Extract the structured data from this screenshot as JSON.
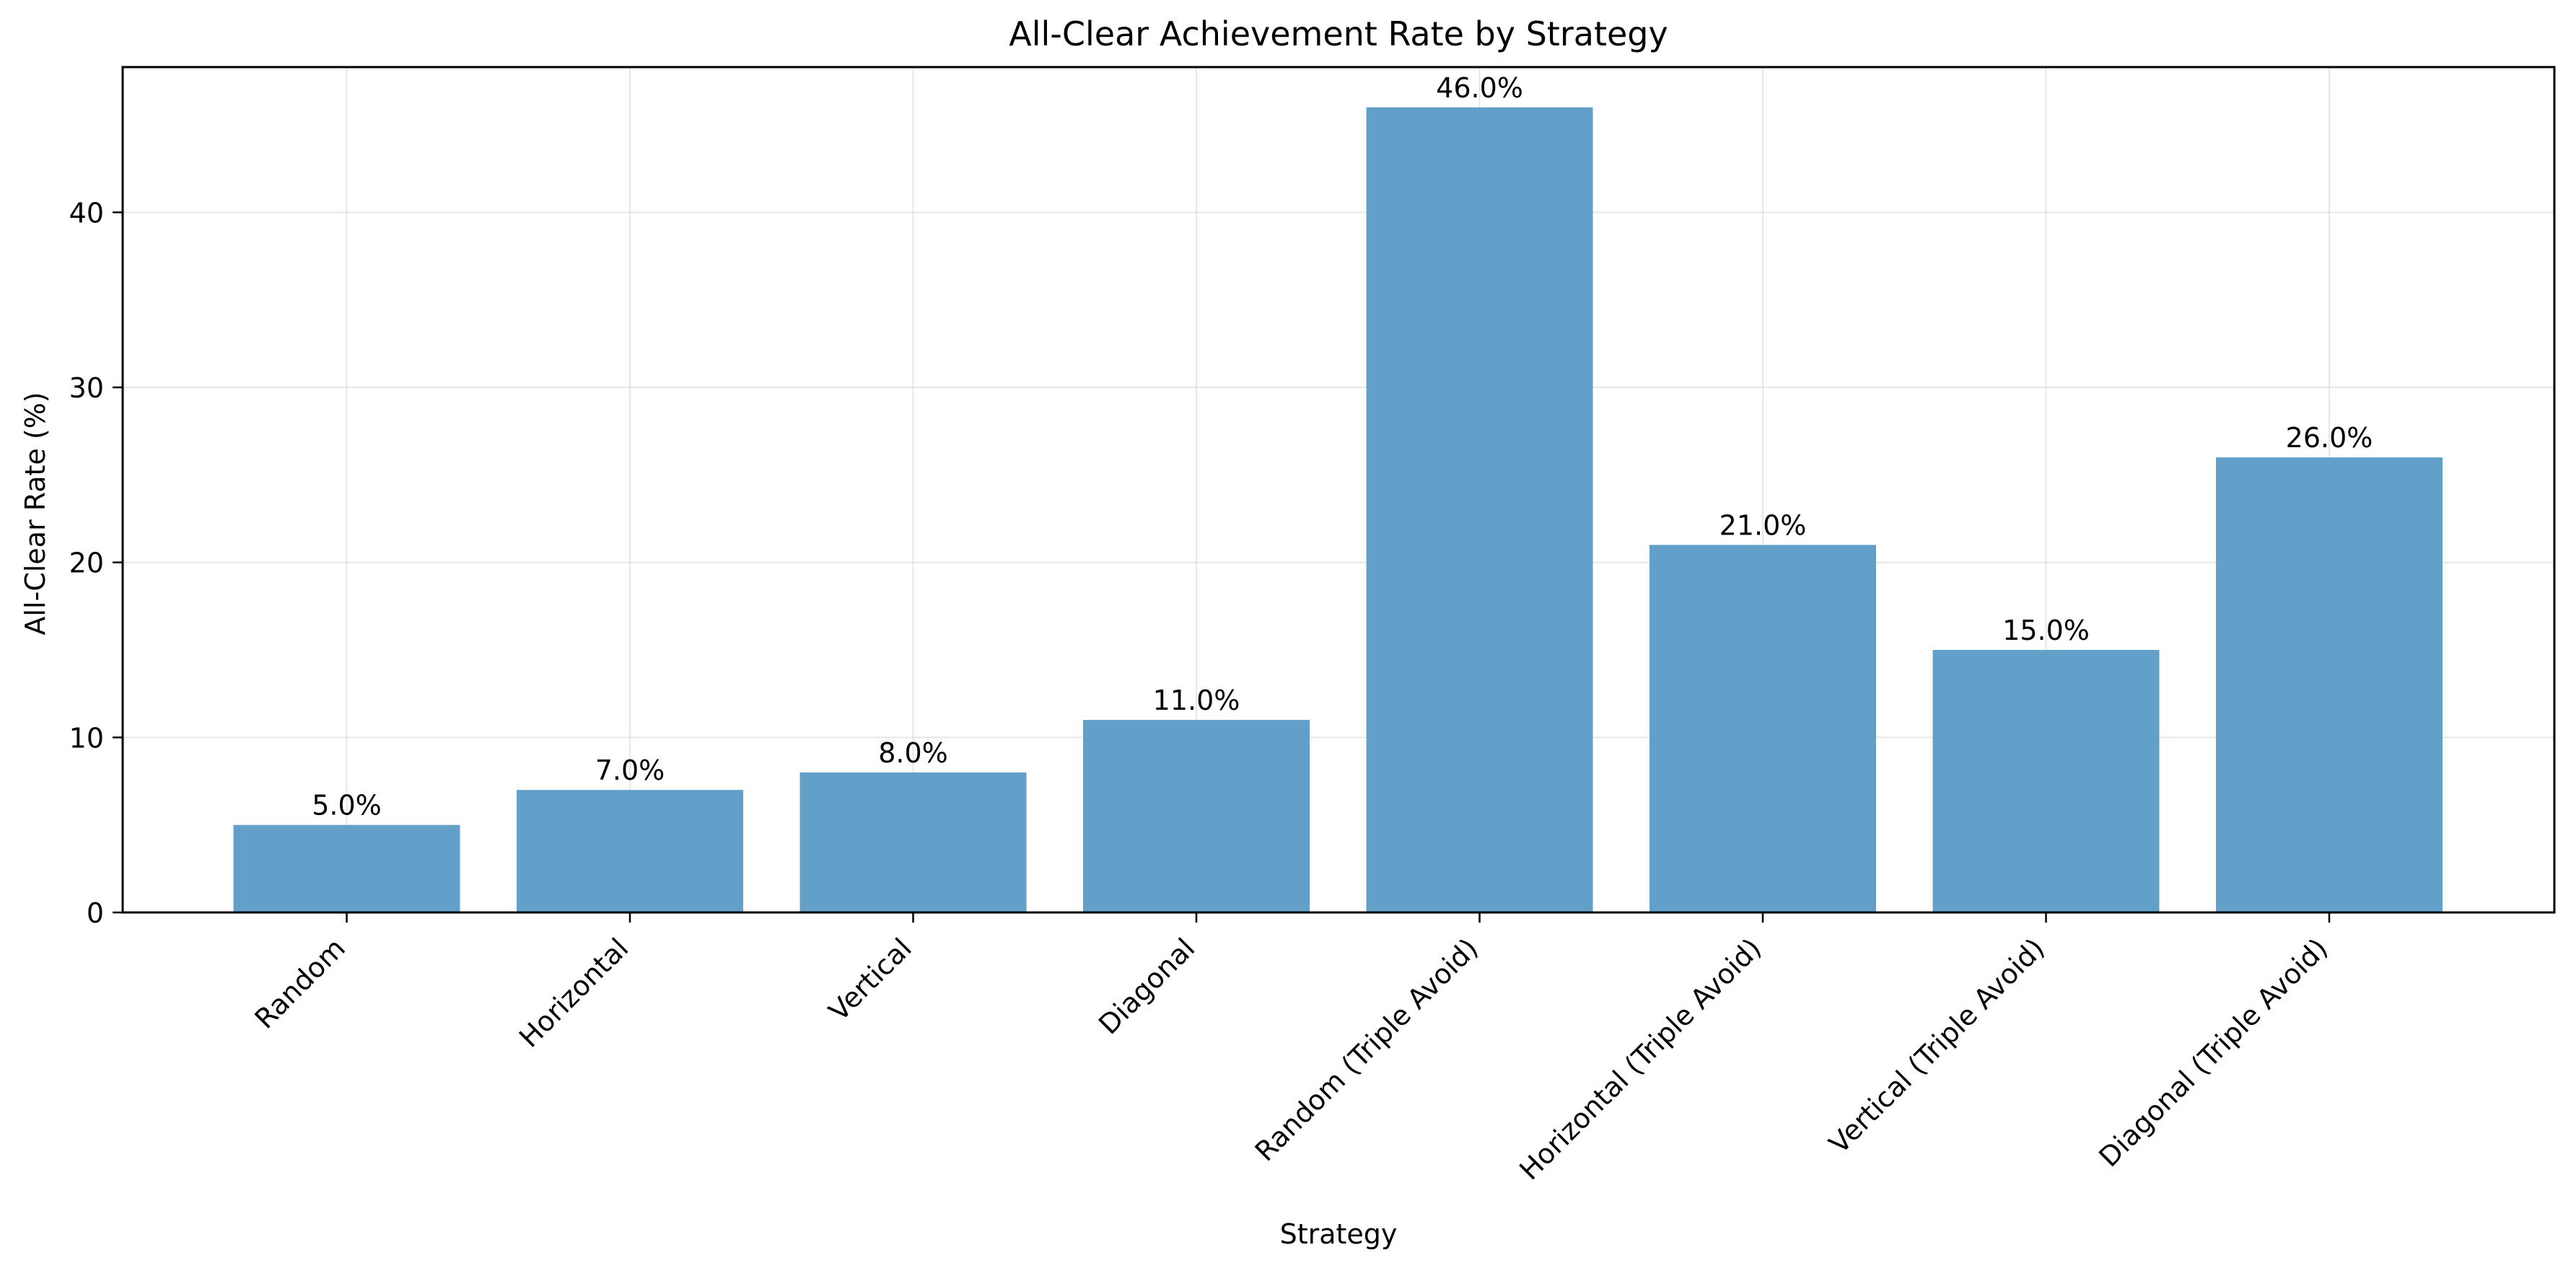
{
  "chart_data": {
    "type": "bar",
    "title": "All-Clear Achievement Rate by Strategy",
    "xlabel": "Strategy",
    "ylabel": "All-Clear Rate (%)",
    "categories": [
      "Random",
      "Horizontal",
      "Vertical",
      "Diagonal",
      "Random (Triple Avoid)",
      "Horizontal (Triple Avoid)",
      "Vertical (Triple Avoid)",
      "Diagonal (Triple Avoid)"
    ],
    "values": [
      5.0,
      7.0,
      8.0,
      11.0,
      46.0,
      21.0,
      15.0,
      26.0
    ],
    "data_labels": [
      "5.0%",
      "7.0%",
      "8.0%",
      "11.0%",
      "46.0%",
      "21.0%",
      "15.0%",
      "26.0%"
    ],
    "ylim": [
      0,
      48.3
    ],
    "yticks": [
      0,
      10,
      20,
      30,
      40
    ],
    "grid": true,
    "legend": "none",
    "bar_color": "#62a0ca"
  }
}
